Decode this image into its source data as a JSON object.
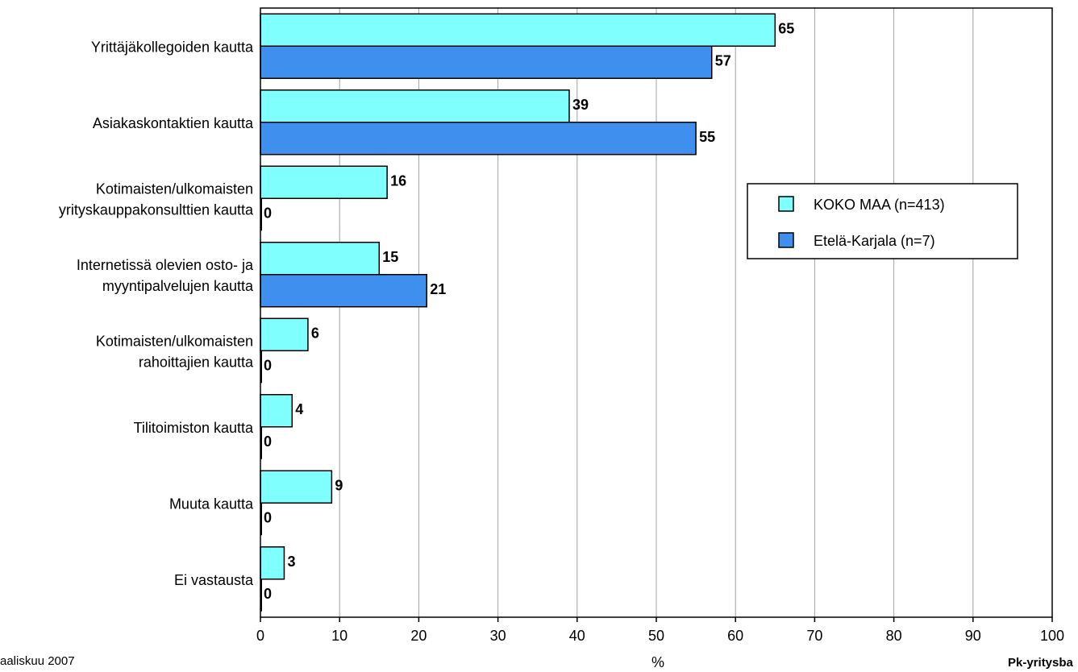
{
  "chart_data": {
    "type": "bar",
    "orientation": "horizontal",
    "categories": [
      [
        "Yrittäjäkollegoiden kautta"
      ],
      [
        "Asiakaskontaktien kautta"
      ],
      [
        "Kotimaisten/ulkomaisten",
        "yrityskauppakonsulttien kautta"
      ],
      [
        "Internetissä olevien osto- ja",
        "myyntipalvelujen kautta"
      ],
      [
        "Kotimaisten/ulkomaisten",
        "rahoittajien kautta"
      ],
      [
        "Tilitoimiston kautta"
      ],
      [
        "Muuta kautta"
      ],
      [
        "Ei vastausta"
      ]
    ],
    "series": [
      {
        "name": "KOKO MAA (n=413)",
        "color": "#80FFFF",
        "values": [
          65,
          39,
          16,
          15,
          6,
          4,
          9,
          3
        ]
      },
      {
        "name": "Etelä-Karjala (n=7)",
        "color": "#3F8FEF",
        "values": [
          57,
          55,
          0,
          21,
          0,
          0,
          0,
          0
        ]
      }
    ],
    "xlim": [
      0,
      100
    ],
    "xticks": [
      0,
      10,
      20,
      30,
      40,
      50,
      60,
      70,
      80,
      90,
      100
    ],
    "xlabel": "%",
    "grid": true,
    "legend_position": "right"
  },
  "footer": {
    "left": "aaliskuu 2007",
    "right": "Pk-yritysba"
  }
}
